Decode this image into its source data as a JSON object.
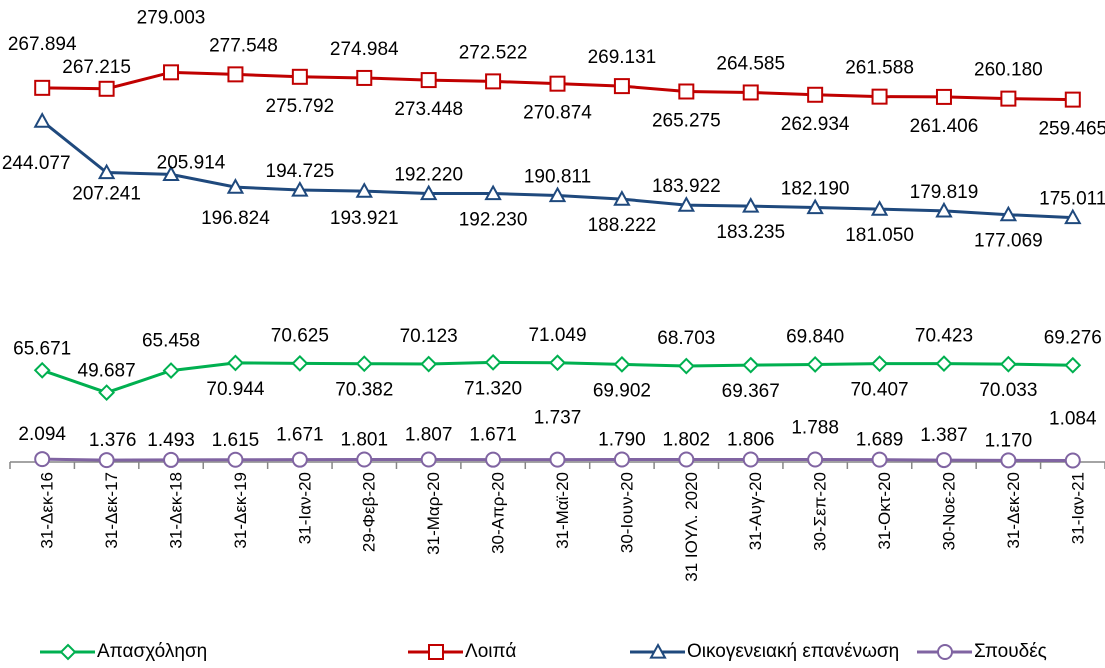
{
  "chart_data": {
    "type": "line",
    "categories": [
      "31-Δεκ-16",
      "31-Δεκ-17",
      "31-Δεκ-18",
      "31-Δεκ-19",
      "31-Ιαν-20",
      "29-Φεβ-20",
      "31-Μαρ-20",
      "30-Απρ-20",
      "31-Μαϊ-20",
      "30-Ιουν-20",
      "31 ΙΟΥΛ. 2020",
      "31-Αυγ-20",
      "30-Σεπ-20",
      "31-Οκτ-20",
      "30-Νοε-20",
      "31-Δεκ-20",
      "31-Ιαν-21"
    ],
    "ylim": [
      0,
      300000
    ],
    "series": [
      {
        "name": "Απασχόληση",
        "color": "#00b050",
        "marker": "diamond",
        "values": [
          65671,
          49687,
          65458,
          70944,
          70625,
          70382,
          70123,
          71320,
          71049,
          69902,
          68703,
          69367,
          69840,
          70407,
          70423,
          70033,
          69276
        ],
        "value_labels": [
          "65.671",
          "49.687",
          "65.458",
          "70.944",
          "70.625",
          "70.382",
          "70.123",
          "71.320",
          "71.049",
          "69.902",
          "68.703",
          "69.367",
          "69.840",
          "70.407",
          "70.423",
          "70.033",
          "69.276"
        ]
      },
      {
        "name": "Λοιπά",
        "color": "#c00000",
        "marker": "square",
        "values": [
          267894,
          267215,
          279003,
          277548,
          275792,
          274984,
          273448,
          272522,
          270874,
          269131,
          265275,
          264585,
          262934,
          261588,
          261406,
          260180,
          259465
        ],
        "value_labels": [
          "267.894",
          "267.215",
          "279.003",
          "277.548",
          "275.792",
          "274.984",
          "273.448",
          "272.522",
          "270.874",
          "269.131",
          "265.275",
          "264.585",
          "262.934",
          "261.588",
          "261.406",
          "260.180",
          "259.465"
        ]
      },
      {
        "name": "Οικογενειακή επανένωση",
        "color": "#1f497d",
        "marker": "triangle",
        "values": [
          244077,
          207241,
          205914,
          196824,
          194725,
          193921,
          192220,
          192230,
          190811,
          188222,
          183922,
          183235,
          182190,
          181050,
          179819,
          177069,
          175011
        ],
        "value_labels": [
          "244.077",
          "207.241",
          "205.914",
          "196.824",
          "194.725",
          "193.921",
          "192.220",
          "192.230",
          "190.811",
          "188.222",
          "183.922",
          "183.235",
          "182.190",
          "181.050",
          "179.819",
          "177.069",
          "175.011"
        ]
      },
      {
        "name": "Σπουδές",
        "color": "#8064a2",
        "marker": "circle",
        "values": [
          2094,
          1376,
          1493,
          1615,
          1671,
          1801,
          1807,
          1671,
          1737,
          1790,
          1802,
          1806,
          1788,
          1689,
          1387,
          1170,
          1084
        ],
        "value_labels": [
          "2.094",
          "1.376",
          "1.493",
          "1.615",
          "1.671",
          "1.801",
          "1.807",
          "1.671",
          "1.737",
          "1.790",
          "1.802",
          "1.806",
          "1.788",
          "1.689",
          "1.387",
          "1.170",
          "1.084"
        ]
      }
    ]
  }
}
